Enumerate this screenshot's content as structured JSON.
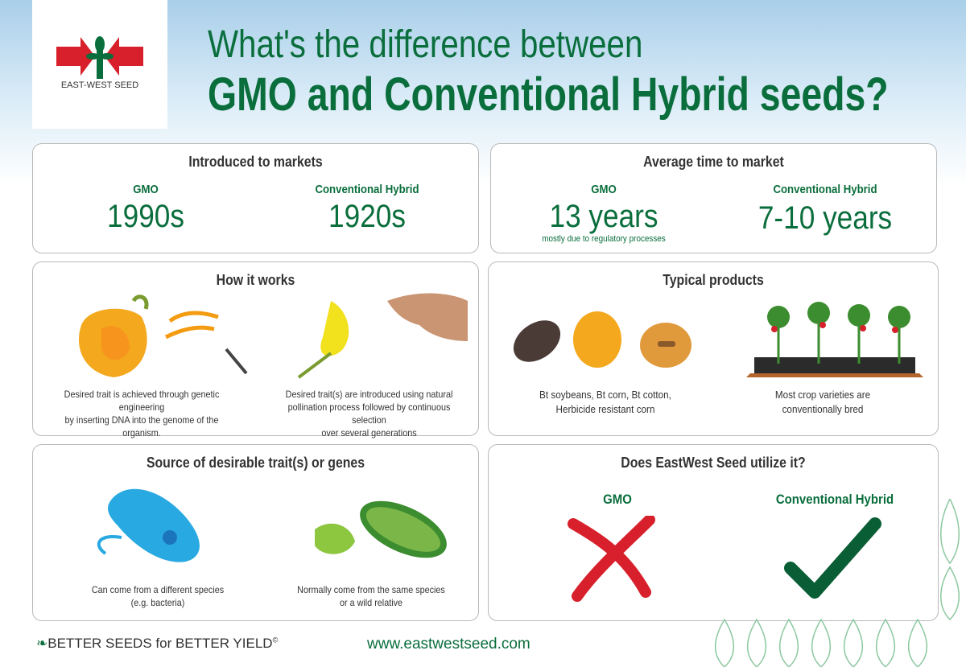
{
  "logo": {
    "text": "EAST-WEST SEED"
  },
  "header": {
    "line1": "What's the difference between",
    "line2": "GMO and Conventional Hybrid seeds?"
  },
  "panels": [
    {
      "title": "Introduced to markets",
      "columns": [
        {
          "label": "GMO",
          "value": "1990s"
        },
        {
          "label": "Conventional Hybrid",
          "value": "1920s"
        }
      ]
    },
    {
      "title": "Average time to market",
      "columns": [
        {
          "label": "GMO",
          "value": "13 years",
          "note": "mostly due to regulatory processes"
        },
        {
          "label": "Conventional Hybrid",
          "value": "7-10 years"
        }
      ]
    },
    {
      "title": "How it works",
      "columns": [
        {
          "caption": [
            "Desired trait is achieved through genetic engineering",
            "by inserting DNA into the genome of the organism."
          ]
        },
        {
          "caption": [
            "Desired trait(s) are introduced using natural",
            "pollination process followed by continuous selection",
            "over several generations"
          ]
        }
      ]
    },
    {
      "title": "Typical products",
      "columns": [
        {
          "caption": [
            "Bt soybeans, Bt corn, Bt cotton,",
            "Herbicide resistant corn"
          ]
        },
        {
          "caption": [
            "Most crop varieties are",
            "conventionally bred"
          ]
        }
      ]
    },
    {
      "title": "Source of desirable trait(s) or genes",
      "columns": [
        {
          "caption": [
            "Can come from a different species",
            "(e.g. bacteria)"
          ]
        },
        {
          "caption": [
            "Normally come from the same species",
            "or a wild relative"
          ]
        }
      ]
    },
    {
      "title": "Does EastWest Seed utilize it?",
      "columns": [
        {
          "label": "GMO"
        },
        {
          "label": "Conventional Hybrid"
        }
      ]
    }
  ],
  "footer": {
    "slogan": "BETTER SEEDS for BETTER YIELD",
    "mark": "©",
    "url": "www.eastwestseed.com"
  }
}
